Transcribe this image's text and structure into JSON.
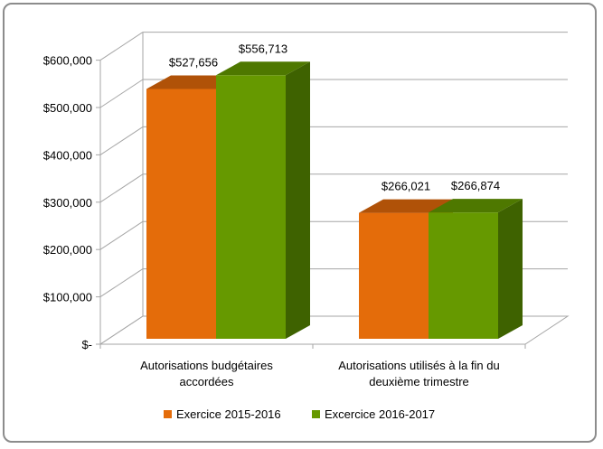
{
  "chart_data": {
    "type": "bar",
    "style": "3d-clustered-column",
    "categories": [
      [
        "Autorisations budgétaires",
        "accordées"
      ],
      [
        "Autorisations utilisés à la fin du",
        "deuxième trimestre"
      ]
    ],
    "series": [
      {
        "name": "Exercice 2015-2016",
        "values": [
          527656,
          266021
        ],
        "labels": [
          "$527,656",
          "$266,021"
        ],
        "color": "#E46C0A",
        "top_color": "#B05208"
      },
      {
        "name": "Excercice 2016-2017",
        "values": [
          556713,
          266874
        ],
        "labels": [
          "$556,713",
          "$266,874"
        ],
        "color": "#669900",
        "top_color": "#4E7800",
        "side_color": "#3E6200"
      }
    ],
    "yticks": [
      0,
      100000,
      200000,
      300000,
      400000,
      500000,
      600000
    ],
    "ytick_labels": [
      "$-",
      "$100,000",
      "$200,000",
      "$300,000",
      "$400,000",
      "$500,000",
      "$600,000"
    ],
    "ylim": [
      0,
      600000
    ],
    "grid": true,
    "legend_position": "bottom"
  }
}
